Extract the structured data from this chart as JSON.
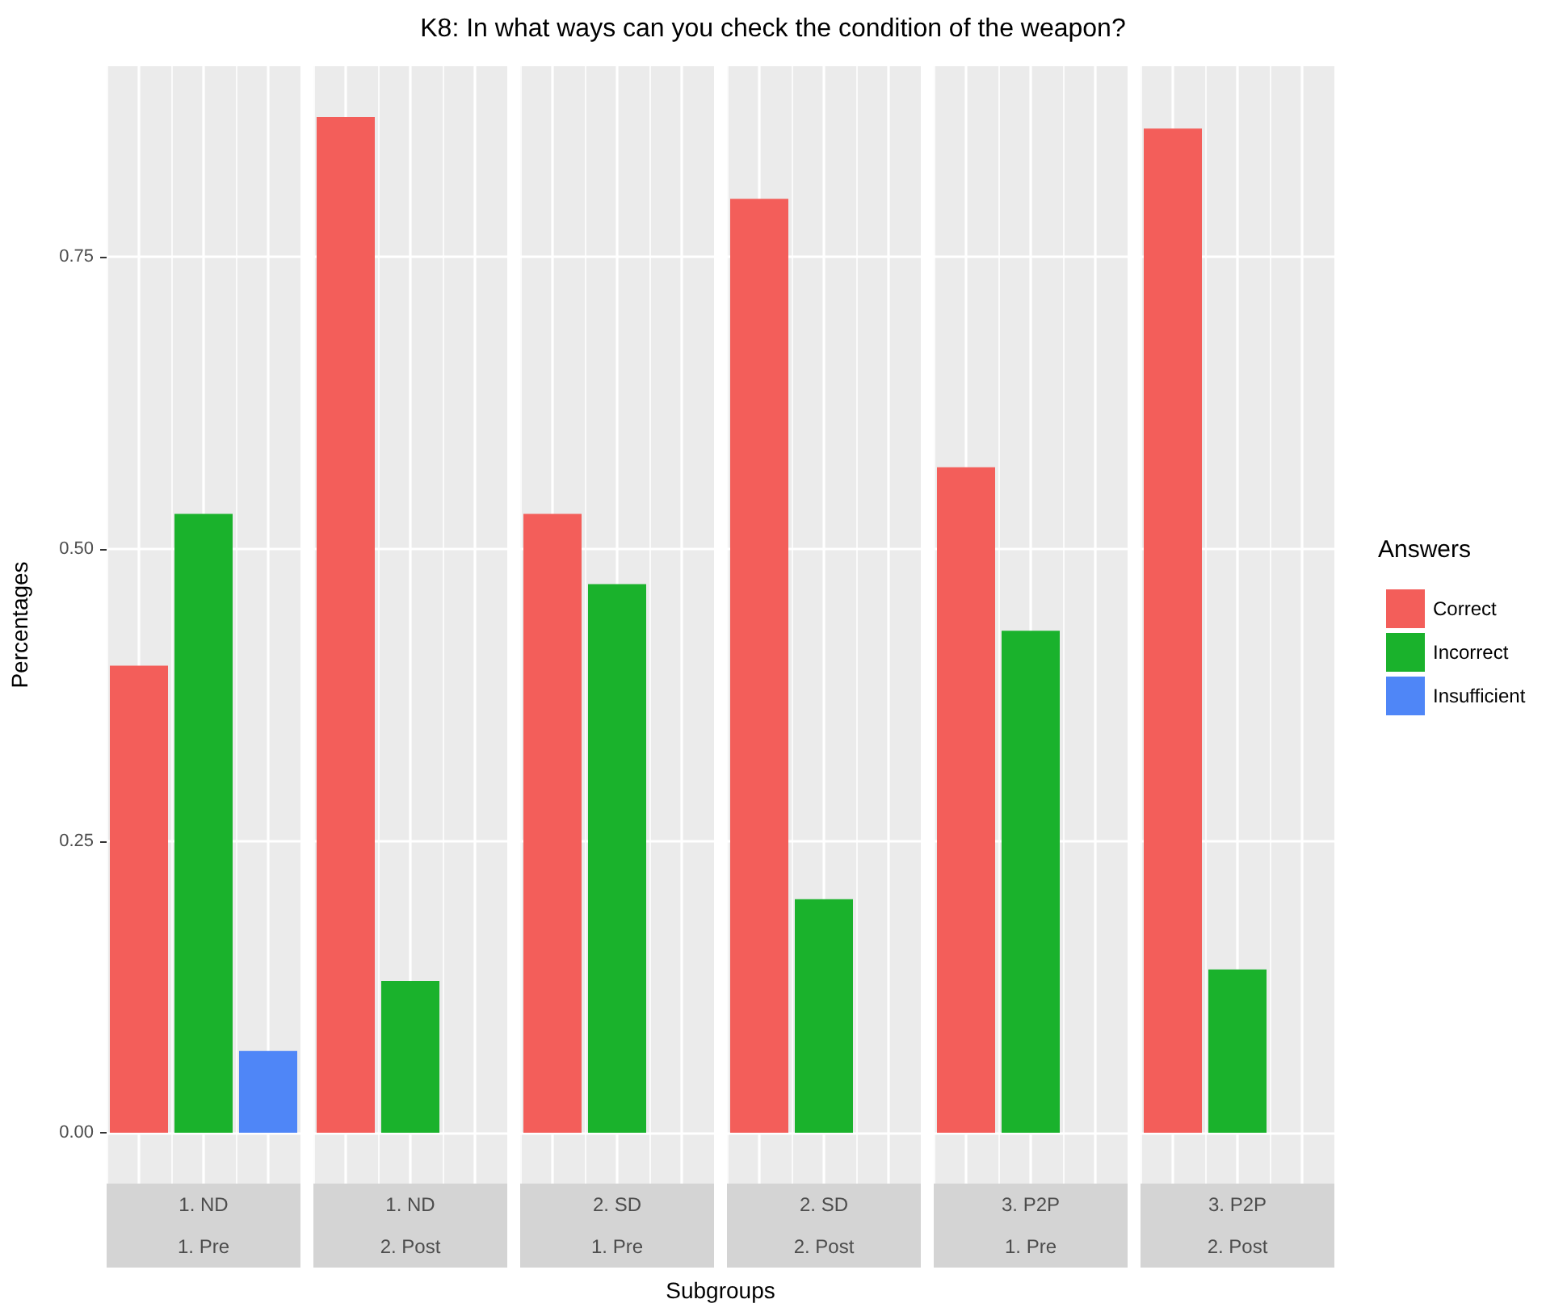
{
  "chart_data": {
    "type": "bar",
    "title": "K8: In what ways can you check the condition of the weapon?",
    "xlabel": "Subgroups",
    "ylabel": "Percentages",
    "legend_title": "Answers",
    "categories": [
      "1. ND\n1. Pre",
      "1. ND\n2. Post",
      "2. SD\n1. Pre",
      "2. SD\n2. Post",
      "3. P2P\n1. Pre",
      "3. P2P\n2. Post"
    ],
    "series": [
      {
        "name": "Correct",
        "color": "#f35e5a",
        "values": [
          0.4,
          0.87,
          0.53,
          0.8,
          0.57,
          0.86
        ]
      },
      {
        "name": "Incorrect",
        "color": "#1ab22c",
        "values": [
          0.53,
          0.13,
          0.47,
          0.2,
          0.43,
          0.14
        ]
      },
      {
        "name": "Insufficient",
        "color": "#4f86f7",
        "values": [
          0.07,
          null,
          null,
          null,
          null,
          null
        ]
      }
    ],
    "ylim": [
      -0.0435,
      0.9135
    ],
    "yticks": [
      {
        "value": 0,
        "label": "0.00"
      },
      {
        "value": 0.25,
        "label": "0.25"
      },
      {
        "value": 0.5,
        "label": "0.50"
      },
      {
        "value": 0.75,
        "label": "0.75"
      }
    ],
    "grid": true,
    "legend": "right"
  }
}
